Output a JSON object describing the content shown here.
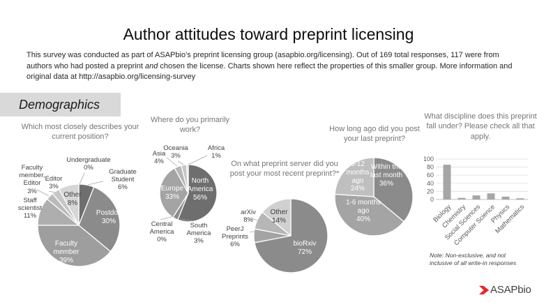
{
  "title": "Author attitudes toward preprint licensing",
  "intro": {
    "part1": "This survey was conducted as part of ASAPbio’s preprint licensing group (asapbio.org/licensing). Out of 169 total responses, 117 were from authors who had posted a preprint ",
    "italic": "and",
    "part2": " chosen the license. Charts shown here reflect the properties of this smaller group. More information and original data at http://asapbio.org/licensing-survey"
  },
  "section_label": "Demographics",
  "footnote": "Note: Non-exclusive, and not inclusive of all write-in responses",
  "logo": {
    "text": "ASAPbio",
    "chevron_color": "#e8272c"
  },
  "chart_data": [
    {
      "type": "pie",
      "title": "Which most closely describes your current position?",
      "legend_position": "outside-labels",
      "slices": [
        {
          "label": "Undergraduate",
          "pct": "0%",
          "value": 0,
          "color": "#ffffff"
        },
        {
          "label": "Graduate Student",
          "pct": "6%",
          "value": 6,
          "color": "#6e6e6e"
        },
        {
          "label": "Postdoc",
          "pct": "30%",
          "value": 30,
          "color": "#8b8b8b"
        },
        {
          "label": "Faculty member",
          "pct": "39%",
          "value": 39,
          "color": "#9e9e9e"
        },
        {
          "label": "Staff scientist",
          "pct": "11%",
          "value": 11,
          "color": "#aeaeae"
        },
        {
          "label": "Faculty member, Editor",
          "pct": "3%",
          "value": 3,
          "color": "#bababa"
        },
        {
          "label": "Editor",
          "pct": "3%",
          "value": 3,
          "color": "#c7c7c7"
        },
        {
          "label": "Other",
          "pct": "8%",
          "value": 8,
          "color": "#d6d6d6"
        }
      ]
    },
    {
      "type": "pie",
      "title": "Where do you primarily work?",
      "legend_position": "outside-labels",
      "slices": [
        {
          "label": "North America",
          "pct": "56%",
          "value": 56,
          "color": "#6e6e6e"
        },
        {
          "label": "South America",
          "pct": "3%",
          "value": 3,
          "color": "#8b8b8b"
        },
        {
          "label": "Central America",
          "pct": "0%",
          "value": 0,
          "color": "#ffffff"
        },
        {
          "label": "Europe",
          "pct": "33%",
          "value": 33,
          "color": "#a4a4a4"
        },
        {
          "label": "Asia",
          "pct": "4%",
          "value": 4,
          "color": "#b6b6b6"
        },
        {
          "label": "Oceania",
          "pct": "3%",
          "value": 3,
          "color": "#c6c6c6"
        },
        {
          "label": "Africa",
          "pct": "1%",
          "value": 1,
          "color": "#d6d6d6"
        }
      ]
    },
    {
      "type": "pie",
      "title": "On what preprint server did you post your most recent preprint?*",
      "legend_position": "outside-labels",
      "slices": [
        {
          "label": "bioRxiv",
          "pct": "72%",
          "value": 72,
          "color": "#8b8b8b"
        },
        {
          "label": "PeerJ Preprints",
          "pct": "6%",
          "value": 6,
          "color": "#a4a4a4"
        },
        {
          "label": "arXiv",
          "pct": "8%",
          "value": 8,
          "color": "#b6b6b6"
        },
        {
          "label": "Other",
          "pct": "14%",
          "value": 14,
          "color": "#d0d0d0"
        }
      ]
    },
    {
      "type": "pie",
      "title": "How long ago did you post your last preprint?",
      "legend_position": "inside-labels",
      "slices": [
        {
          "label": "Within the last month",
          "pct": "36%",
          "value": 36,
          "color": "#8b8b8b"
        },
        {
          "label": "1-6 months ago",
          "pct": "40%",
          "value": 40,
          "color": "#a4a4a4"
        },
        {
          "label": "6-12 months ago",
          "pct": "24%",
          "value": 24,
          "color": "#bfbfbf"
        }
      ]
    },
    {
      "type": "bar",
      "title": "What discipline does this preprint fall under? Please check all that apply.",
      "categories": [
        "Biology",
        "Chemistry",
        "Social Sciences",
        "Computer Science",
        "Physics",
        "Mathematics"
      ],
      "values": [
        86,
        4,
        10,
        15,
        7,
        3
      ],
      "xlabel": "",
      "ylabel": "",
      "ylim": [
        0,
        100
      ],
      "yticks": [
        0,
        20,
        40,
        60,
        80,
        100
      ],
      "grid": true,
      "bar_color": "#a6a6a6"
    }
  ]
}
